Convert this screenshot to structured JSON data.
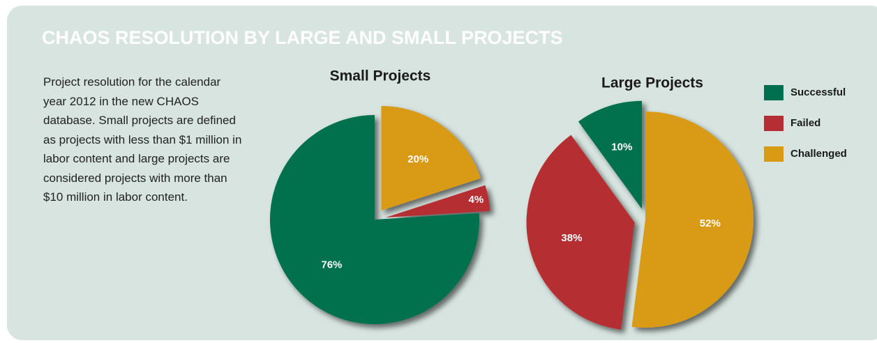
{
  "title": "CHAOS RESOLUTION BY LARGE AND SMALL PROJECTS",
  "description": "Project resolution for the calendar year 2012 in the new CHAOS database. Small projects are defined as projects with less than $1 million in labor content and large projects are considered projects with more than $10 million in labor content.",
  "chart_data": [
    {
      "type": "pie",
      "title": "Small Projects",
      "categories": [
        "Successful",
        "Failed",
        "Challenged"
      ],
      "values": [
        76,
        4,
        20
      ],
      "value_labels": [
        "76%",
        "4%",
        "20%"
      ],
      "colors": [
        "#006f4e",
        "#b52e33",
        "#d99a14"
      ]
    },
    {
      "type": "pie",
      "title": "Large Projects",
      "categories": [
        "Successful",
        "Failed",
        "Challenged"
      ],
      "values": [
        10,
        38,
        52
      ],
      "value_labels": [
        "10%",
        "38%",
        "52%"
      ],
      "colors": [
        "#006f4e",
        "#b52e33",
        "#d99a14"
      ]
    }
  ]
}
